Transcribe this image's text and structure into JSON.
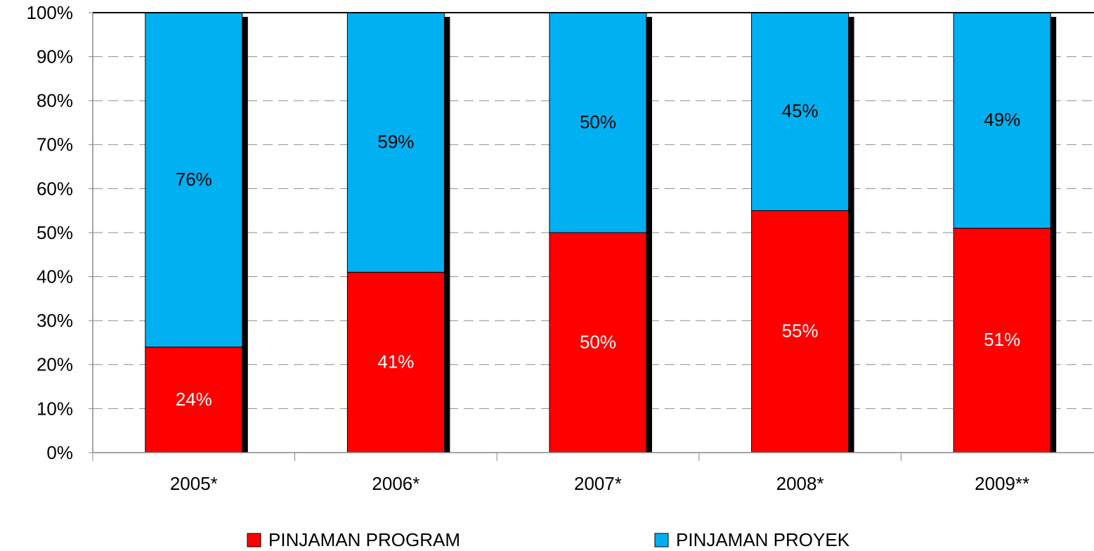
{
  "chart_data": {
    "type": "stacked_bar",
    "categories": [
      "2005*",
      "2006*",
      "2007*",
      "2008*",
      "2009**"
    ],
    "series": [
      {
        "name": "PINJAMAN PROGRAM",
        "color": "#ff0000",
        "values": [
          24,
          41,
          50,
          55,
          51
        ],
        "value_labels": [
          "24%",
          "41%",
          "50%",
          "55%",
          "51%"
        ]
      },
      {
        "name": "PINJAMAN PROYEK",
        "color": "#00b0f0",
        "values": [
          76,
          59,
          50,
          45,
          49
        ],
        "value_labels": [
          "76%",
          "59%",
          "50%",
          "45%",
          "49%"
        ]
      }
    ],
    "ylim": [
      0,
      100
    ],
    "yticks": [
      {
        "value": 0,
        "label": "0%"
      },
      {
        "value": 10,
        "label": "10%"
      },
      {
        "value": 20,
        "label": "20%"
      },
      {
        "value": 30,
        "label": "30%"
      },
      {
        "value": 40,
        "label": "40%"
      },
      {
        "value": 50,
        "label": "50%"
      },
      {
        "value": 60,
        "label": "60%"
      },
      {
        "value": 70,
        "label": "70%"
      },
      {
        "value": 80,
        "label": "80%"
      },
      {
        "value": 90,
        "label": "90%"
      },
      {
        "value": 100,
        "label": "100%"
      }
    ],
    "grid": true,
    "legend": "bottom"
  }
}
